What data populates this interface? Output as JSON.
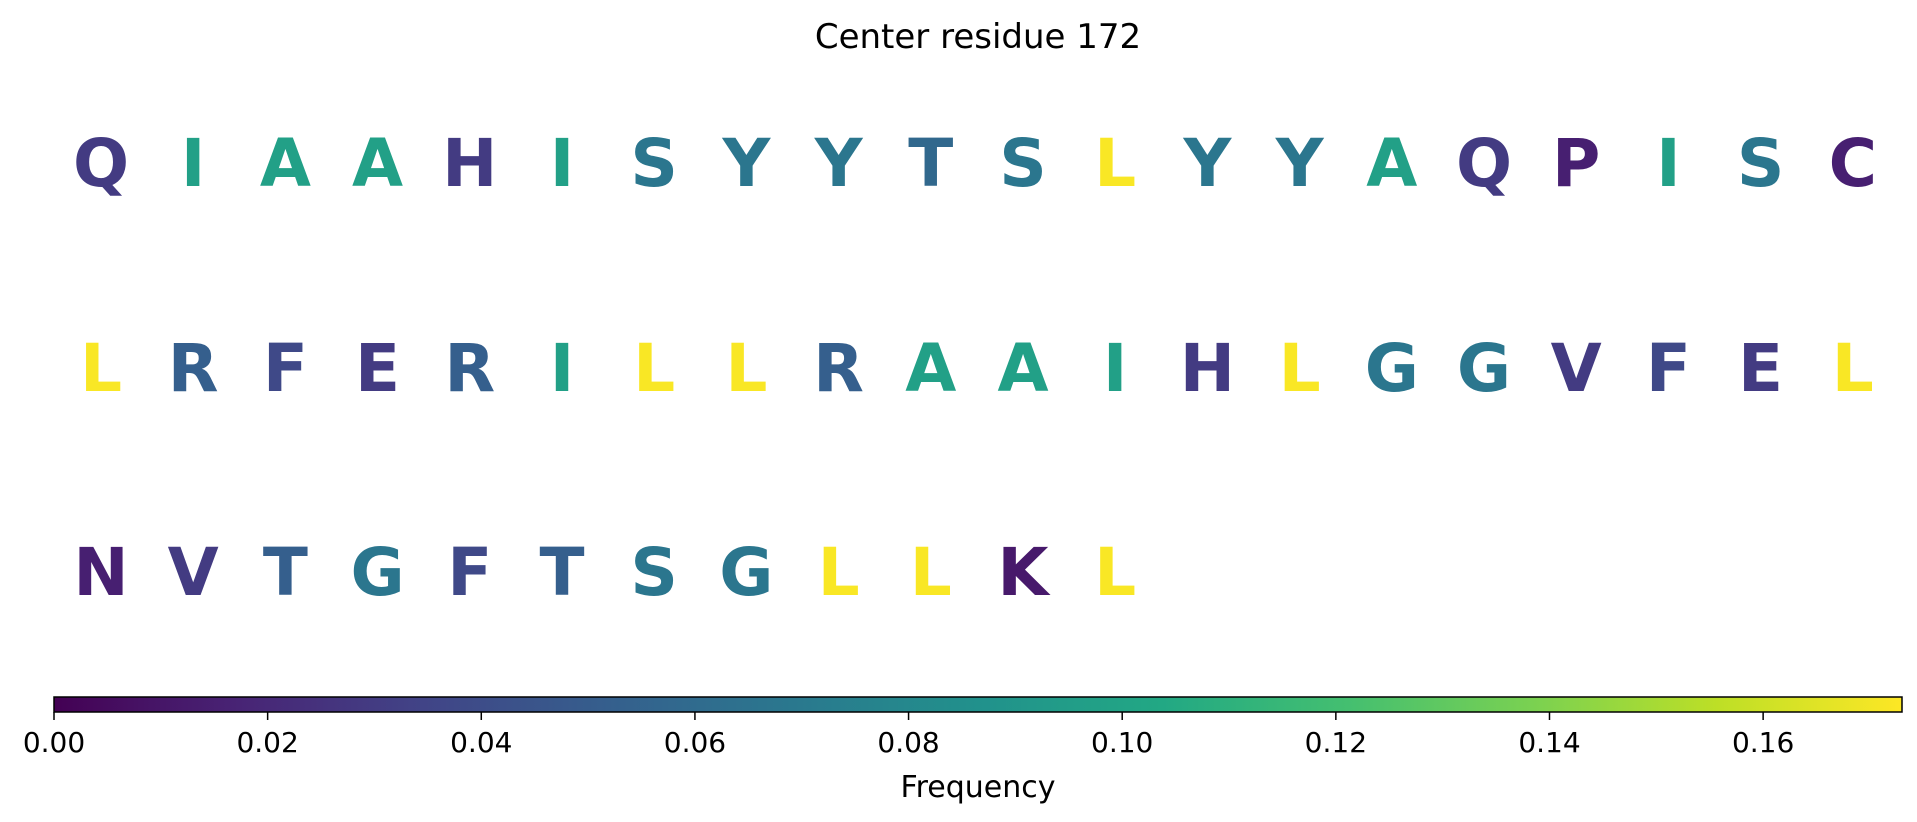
{
  "chart_data": {
    "type": "heatmap",
    "title": "Center residue 172",
    "colormap": "viridis",
    "columns_per_row": 20,
    "residues": [
      {
        "letter": "Q",
        "frequency": 0.03
      },
      {
        "letter": "I",
        "frequency": 0.098
      },
      {
        "letter": "A",
        "frequency": 0.098
      },
      {
        "letter": "A",
        "frequency": 0.098
      },
      {
        "letter": "H",
        "frequency": 0.03
      },
      {
        "letter": "I",
        "frequency": 0.098
      },
      {
        "letter": "S",
        "frequency": 0.068
      },
      {
        "letter": "Y",
        "frequency": 0.068
      },
      {
        "letter": "Y",
        "frequency": 0.068
      },
      {
        "letter": "T",
        "frequency": 0.058
      },
      {
        "letter": "S",
        "frequency": 0.068
      },
      {
        "letter": "L",
        "frequency": 0.172
      },
      {
        "letter": "Y",
        "frequency": 0.068
      },
      {
        "letter": "Y",
        "frequency": 0.068
      },
      {
        "letter": "A",
        "frequency": 0.098
      },
      {
        "letter": "Q",
        "frequency": 0.03
      },
      {
        "letter": "P",
        "frequency": 0.015
      },
      {
        "letter": "I",
        "frequency": 0.098
      },
      {
        "letter": "S",
        "frequency": 0.068
      },
      {
        "letter": "C",
        "frequency": 0.015
      },
      {
        "letter": "L",
        "frequency": 0.172
      },
      {
        "letter": "R",
        "frequency": 0.052
      },
      {
        "letter": "F",
        "frequency": 0.038
      },
      {
        "letter": "E",
        "frequency": 0.03
      },
      {
        "letter": "R",
        "frequency": 0.052
      },
      {
        "letter": "I",
        "frequency": 0.098
      },
      {
        "letter": "L",
        "frequency": 0.172
      },
      {
        "letter": "L",
        "frequency": 0.172
      },
      {
        "letter": "R",
        "frequency": 0.052
      },
      {
        "letter": "A",
        "frequency": 0.098
      },
      {
        "letter": "A",
        "frequency": 0.098
      },
      {
        "letter": "I",
        "frequency": 0.098
      },
      {
        "letter": "H",
        "frequency": 0.03
      },
      {
        "letter": "L",
        "frequency": 0.172
      },
      {
        "letter": "G",
        "frequency": 0.068
      },
      {
        "letter": "G",
        "frequency": 0.068
      },
      {
        "letter": "V",
        "frequency": 0.03
      },
      {
        "letter": "F",
        "frequency": 0.038
      },
      {
        "letter": "E",
        "frequency": 0.03
      },
      {
        "letter": "L",
        "frequency": 0.172
      },
      {
        "letter": "N",
        "frequency": 0.015
      },
      {
        "letter": "V",
        "frequency": 0.03
      },
      {
        "letter": "T",
        "frequency": 0.052
      },
      {
        "letter": "G",
        "frequency": 0.068
      },
      {
        "letter": "F",
        "frequency": 0.038
      },
      {
        "letter": "T",
        "frequency": 0.052
      },
      {
        "letter": "S",
        "frequency": 0.068
      },
      {
        "letter": "G",
        "frequency": 0.068
      },
      {
        "letter": "L",
        "frequency": 0.172
      },
      {
        "letter": "L",
        "frequency": 0.172
      },
      {
        "letter": "K",
        "frequency": 0.012
      },
      {
        "letter": "L",
        "frequency": 0.172
      }
    ],
    "colorbar": {
      "label": "Frequency",
      "min": 0.0,
      "max": 0.173,
      "ticks": [
        0.0,
        0.02,
        0.04,
        0.06,
        0.08,
        0.1,
        0.12,
        0.14,
        0.16
      ],
      "tick_labels": [
        "0.00",
        "0.02",
        "0.04",
        "0.06",
        "0.08",
        "0.10",
        "0.12",
        "0.14",
        "0.16"
      ],
      "orientation": "horizontal"
    }
  }
}
